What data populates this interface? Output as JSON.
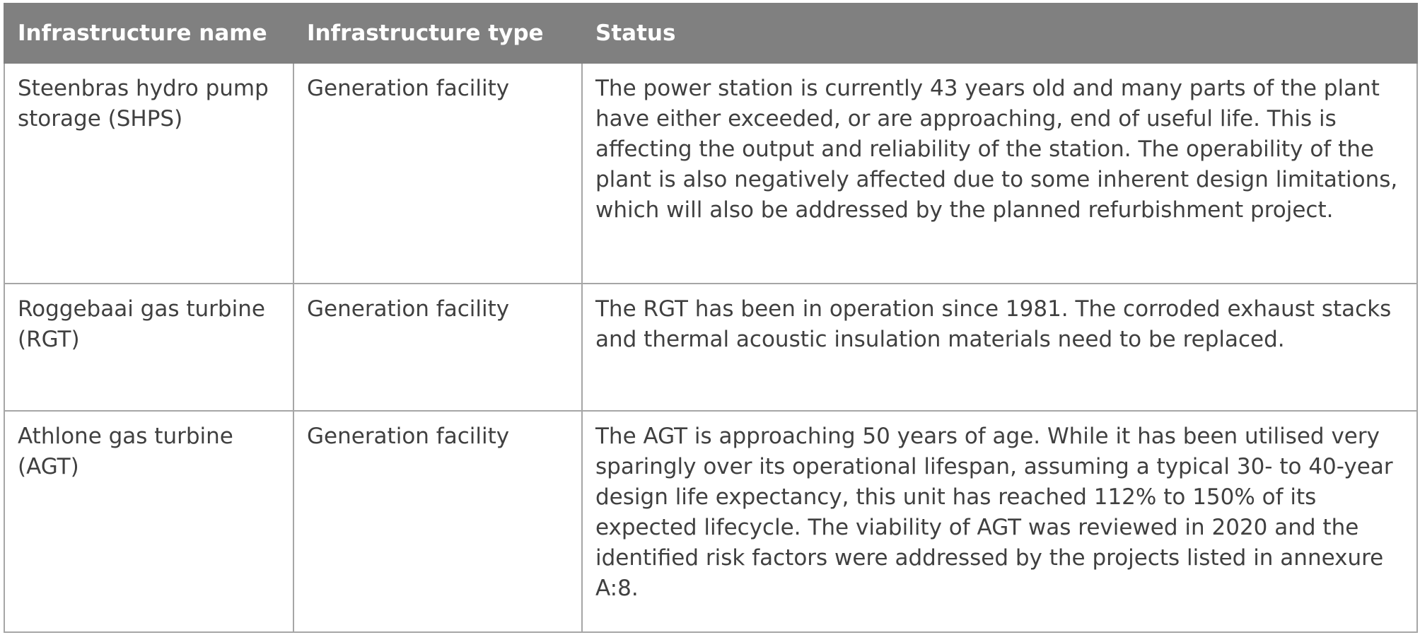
{
  "table": {
    "headers": [
      "Infrastructure name",
      "Infrastructure type",
      "Status"
    ],
    "rows": [
      {
        "name": "Steenbras hydro pump storage (SHPS)",
        "type": "Generation facility",
        "status": "The power station is currently 43 years old and many parts of the plant have either exceeded, or are approaching, end of useful life. This is affecting the output and reliability of the station. The operability of the plant is also negatively affected due to some inherent design limitations, which will also be addressed by the planned refurbishment project."
      },
      {
        "name": "Roggebaai gas turbine (RGT)",
        "type": "Generation facility",
        "status": "The RGT has been in operation since 1981. The corroded exhaust stacks and thermal acoustic insulation materials need to be replaced."
      },
      {
        "name": "Athlone gas turbine (AGT)",
        "type": "Generation facility",
        "status": "The AGT is approaching 50 years of age. While it has been utilised very sparingly over its operational lifespan, assuming a typical 30- to 40-year design life expectancy, this unit has reached 112% to 150% of its expected lifecycle. The viability of AGT was reviewed in 2020 and the identified risk factors were addressed by the projects listed in annexure A:8."
      }
    ]
  },
  "colors": {
    "header_background": "#808080",
    "header_text": "#ffffff",
    "body_text": "#404040",
    "grid_lines": "#a6a6a6"
  }
}
